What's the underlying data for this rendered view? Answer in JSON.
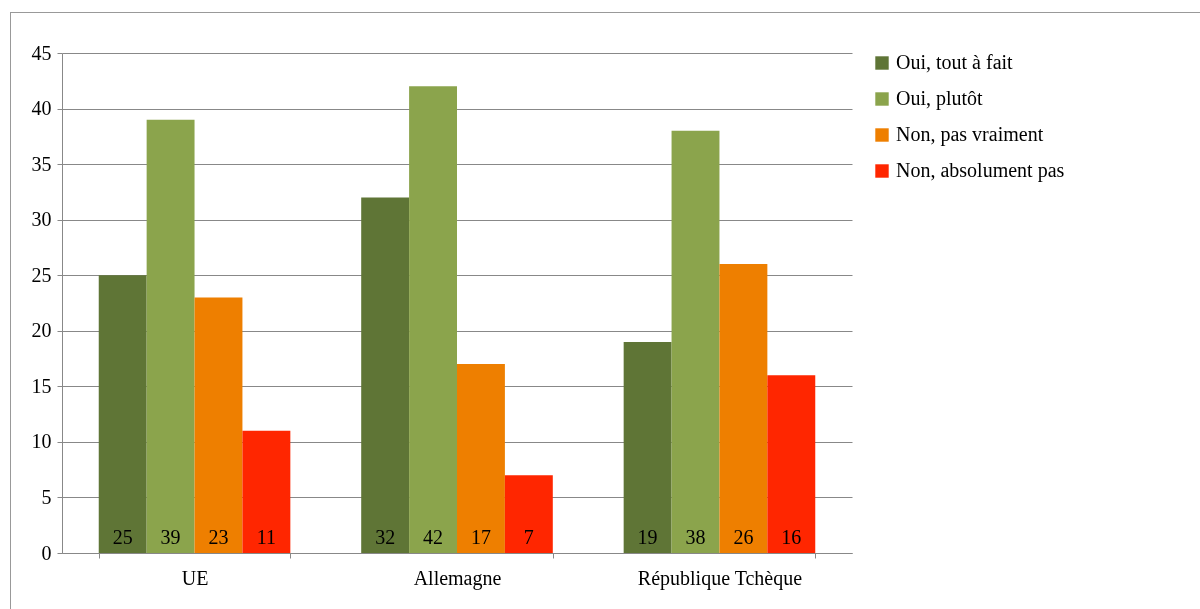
{
  "chart_data": {
    "type": "bar",
    "categories": [
      "UE",
      "Allemagne",
      "République Tchèque"
    ],
    "series": [
      {
        "name": "Oui, tout à fait",
        "color": "#5f7536",
        "values": [
          25,
          32,
          19
        ]
      },
      {
        "name": "Oui, plutôt",
        "color": "#8ba44c",
        "values": [
          39,
          42,
          38
        ]
      },
      {
        "name": "Non, pas vraiment",
        "color": "#ee7f00",
        "values": [
          23,
          17,
          26
        ]
      },
      {
        "name": "Non, absolument pas",
        "color": "#ff2600",
        "values": [
          11,
          7,
          16
        ]
      }
    ],
    "ylim": [
      0,
      45
    ],
    "yticks": [
      0,
      5,
      10,
      15,
      20,
      25,
      30,
      35,
      40,
      45
    ],
    "grid": "y",
    "legend": "right",
    "data_labels": true
  }
}
